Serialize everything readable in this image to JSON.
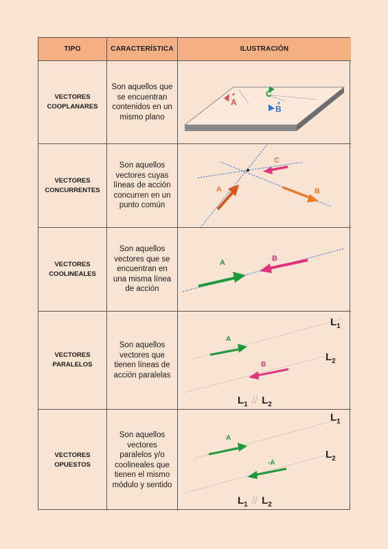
{
  "header": {
    "tipo": "TIPO",
    "caracteristica": "CARACTERÍSTICA",
    "ilustracion": "ILUSTRACIÓN"
  },
  "rows": [
    {
      "tipo_line1": "VECTORES",
      "tipo_line2": "COOPLANARES",
      "descripcion": "Son aquellos que se encuentran contenidos en un mismo plano",
      "labels": {
        "a": "A",
        "b": "B",
        "c": "C"
      }
    },
    {
      "tipo_line1": "VECTORES",
      "tipo_line2": "CONCURRENTES",
      "descripcion": "Son aquellos vectores cuyas líneas de acción concurren en un punto común",
      "labels": {
        "a": "A",
        "b": "B",
        "c": "C"
      }
    },
    {
      "tipo_line1": "VECTORES",
      "tipo_line2": "COOLINEALES",
      "descripcion": "Son aquellos vectores que se encuentran en una misma línea de acción",
      "labels": {
        "a": "A",
        "b": "B"
      }
    },
    {
      "tipo_line1": "VECTORES",
      "tipo_line2": "PARALELOS",
      "descripcion": "Son aquellos vectores que tienen líneas de acción paralelas",
      "labels": {
        "a": "A",
        "b": "B",
        "l": "L",
        "sub1": "1",
        "sub2": "2",
        "parallel": "//"
      }
    },
    {
      "tipo_line1": "VECTORES",
      "tipo_line2": "OPUESTOS",
      "descripcion": "Son aquellos vectores paralelos y/o coolineales que tienen el mismo módulo y sentido",
      "labels": {
        "a": "A",
        "neg_a": "-A",
        "l": "L",
        "sub1": "1",
        "sub2": "2",
        "parallel": "//"
      }
    }
  ],
  "colors": {
    "background": "#f9e3d3",
    "header": "#f5b184",
    "border": "#555555",
    "red": "#e04a4a",
    "green": "#1e9a3c",
    "blue": "#2a78d0",
    "pink": "#e0337a",
    "orange": "#e87a2a",
    "orange_dark": "#d4581a",
    "dotted_line": "#3a7fd0"
  }
}
